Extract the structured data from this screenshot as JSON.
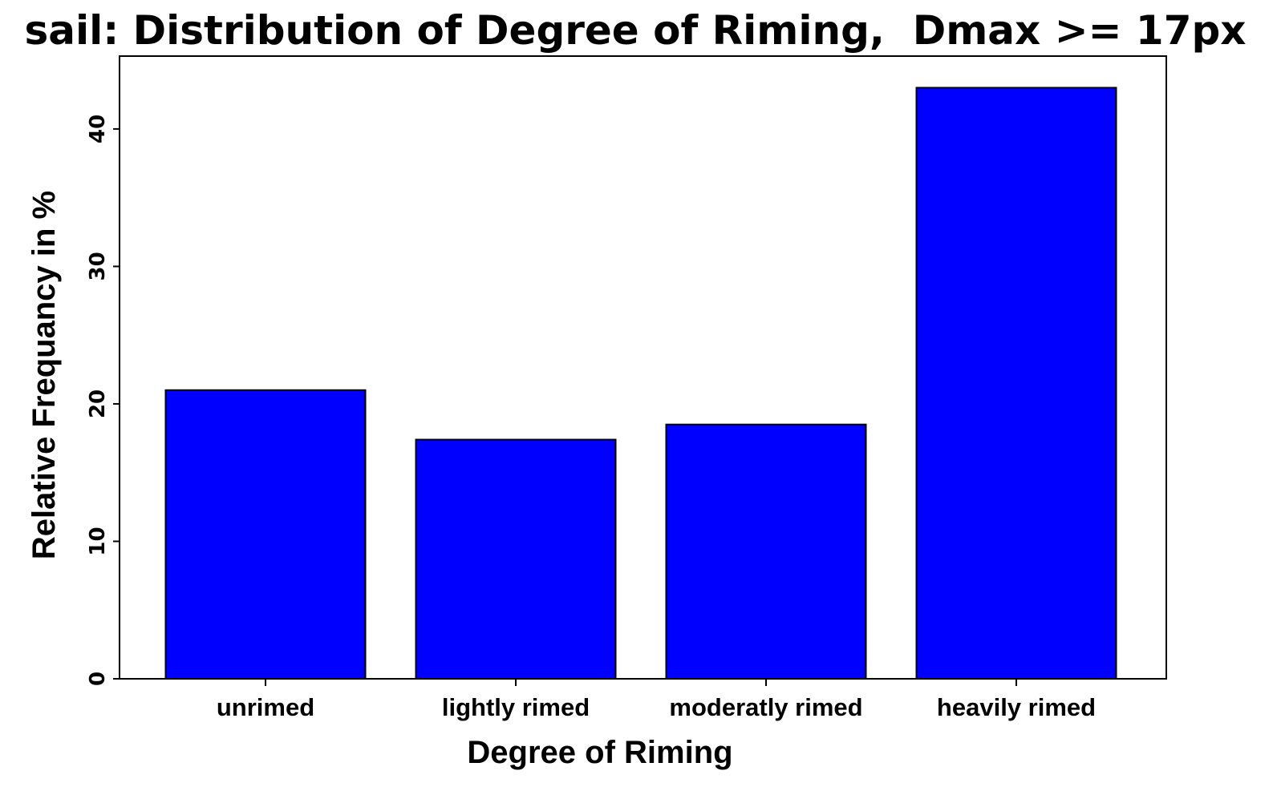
{
  "chart_data": {
    "type": "bar",
    "title": "sail: Distribution of Degree of Riming,  Dmax >= 17px",
    "xlabel": "Degree of Riming",
    "ylabel": "Relative Frequancy in %",
    "categories": [
      "unrimed",
      "lightly rimed",
      "moderatly rimed",
      "heavily rimed"
    ],
    "values": [
      21.0,
      17.4,
      18.5,
      43.0
    ],
    "ylim": [
      0,
      45.3
    ],
    "yticks": [
      0,
      10,
      20,
      30,
      40
    ],
    "bar_color": "#0000ff",
    "edge_color": "#000000",
    "grid": false,
    "legend": "none"
  }
}
